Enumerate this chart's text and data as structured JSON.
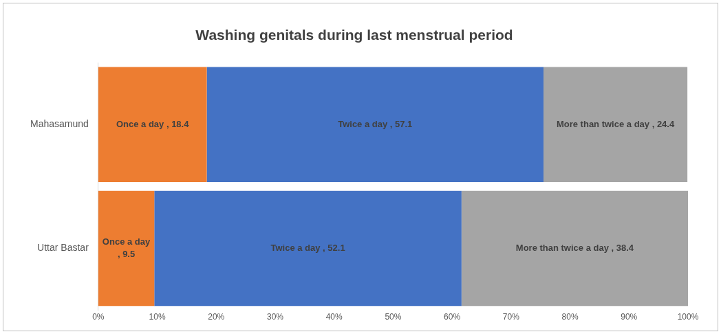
{
  "chart_data": {
    "type": "bar",
    "orientation": "horizontal",
    "stacked": true,
    "title": "Washing genitals during last menstrual period",
    "categories": [
      "Mahasamund",
      "Uttar Bastar"
    ],
    "series": [
      {
        "name": "Once a day",
        "color": "#ed7d31",
        "values": [
          18.4,
          9.5
        ],
        "value_labels": [
          ", 18.4",
          ", 9.5"
        ]
      },
      {
        "name": "Twice a day",
        "color": "#4472c4",
        "values": [
          57.1,
          52.1
        ],
        "value_labels": [
          ", 57.1",
          ", 52.1"
        ]
      },
      {
        "name": "More than twice a day",
        "color": "#a5a5a5",
        "values": [
          24.4,
          38.4
        ],
        "value_labels": [
          ", 24.4",
          ", 38.4"
        ]
      }
    ],
    "xlim": [
      0,
      100
    ],
    "xticks": [
      {
        "value": 0,
        "label": "0%"
      },
      {
        "value": 10,
        "label": "10%"
      },
      {
        "value": 20,
        "label": "20%"
      },
      {
        "value": 30,
        "label": "30%"
      },
      {
        "value": 40,
        "label": "40%"
      },
      {
        "value": 50,
        "label": "50%"
      },
      {
        "value": 60,
        "label": "60%"
      },
      {
        "value": 70,
        "label": "70%"
      },
      {
        "value": 80,
        "label": "80%"
      },
      {
        "value": 90,
        "label": "90%"
      },
      {
        "value": 100,
        "label": "100%"
      }
    ],
    "grid": false,
    "legend": false
  }
}
